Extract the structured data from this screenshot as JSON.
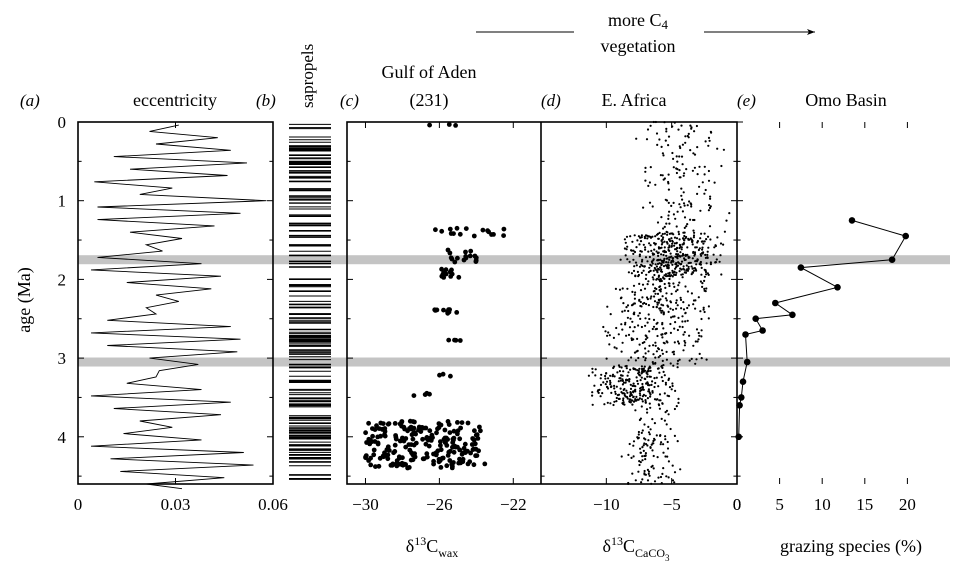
{
  "header": {
    "arrow_text_line1": "more C",
    "arrow_text_line1_sub": "4",
    "arrow_text_line2": "vegetation"
  },
  "y_axis": {
    "label": "age (Ma)",
    "ticks": [
      "0",
      "1",
      "2",
      "3",
      "4"
    ]
  },
  "shading_bands_ma": [
    1.75,
    3.05
  ],
  "chart_data": [
    {
      "type": "line",
      "panel_label": "(a)",
      "title": "eccentricity",
      "xlim": [
        0,
        0.06
      ],
      "ylim": [
        0,
        4.6
      ],
      "x_ticks": [
        "0",
        "0.03",
        "0.06"
      ],
      "xlabel": "",
      "series": [
        {
          "x": [
            0.031,
            0.022,
            0.043,
            0.024,
            0.047,
            0.011,
            0.052,
            0.016,
            0.046,
            0.005,
            0.029,
            0.019,
            0.058,
            0.006,
            0.05,
            0.006,
            0.042,
            0.016,
            0.032,
            0.021,
            0.026,
            0.006,
            0.038,
            0.004,
            0.044,
            0.015,
            0.041,
            0.024,
            0.031,
            0.021,
            0.024,
            0.009,
            0.047,
            0.004,
            0.05,
            0.009,
            0.049,
            0.022,
            0.037,
            0.025,
            0.024,
            0.015,
            0.038,
            0.004,
            0.047,
            0.011,
            0.044,
            0.019,
            0.029,
            0.014,
            0.038,
            0.004,
            0.051,
            0.01,
            0.054,
            0.013,
            0.045,
            0.021,
            0.032
          ],
          "y": [
            0.04,
            0.12,
            0.2,
            0.28,
            0.36,
            0.44,
            0.52,
            0.6,
            0.68,
            0.76,
            0.84,
            0.92,
            1.0,
            1.08,
            1.16,
            1.24,
            1.32,
            1.4,
            1.48,
            1.56,
            1.64,
            1.72,
            1.8,
            1.88,
            1.96,
            2.04,
            2.12,
            2.2,
            2.28,
            2.36,
            2.44,
            2.52,
            2.6,
            2.68,
            2.76,
            2.84,
            2.92,
            3.0,
            3.08,
            3.16,
            3.24,
            3.32,
            3.4,
            3.48,
            3.56,
            3.64,
            3.72,
            3.8,
            3.88,
            3.96,
            4.04,
            4.12,
            4.2,
            4.28,
            4.36,
            4.44,
            4.52,
            4.6,
            4.66
          ]
        }
      ]
    },
    {
      "type": "table",
      "panel_label": "(b)",
      "title": "sapropels",
      "ylim": [
        0,
        4.6
      ]
    },
    {
      "type": "scatter",
      "panel_label": "(c)",
      "title_line1": "Gulf of Aden",
      "title_line2": "(231)",
      "xlabel": "δ13Cwax",
      "xlim": [
        -31,
        -20.5
      ],
      "ylim": [
        0,
        4.6
      ],
      "x_ticks": [
        "−30",
        "−26",
        "−22"
      ],
      "clusters": [
        {
          "x_min": -26.8,
          "x_max": -25.0,
          "y_min": 0.03,
          "y_max": 0.05,
          "n": 3
        },
        {
          "x_min": -26.3,
          "x_max": -22.0,
          "y_min": 1.35,
          "y_max": 1.45,
          "n": 16
        },
        {
          "x_min": -25.6,
          "x_max": -24.0,
          "y_min": 1.62,
          "y_max": 1.78,
          "n": 16
        },
        {
          "x_min": -26.0,
          "x_max": -24.8,
          "y_min": 1.86,
          "y_max": 1.98,
          "n": 12
        },
        {
          "x_min": -26.4,
          "x_max": -25.0,
          "y_min": 2.38,
          "y_max": 2.44,
          "n": 10
        },
        {
          "x_min": -25.5,
          "x_max": -24.8,
          "y_min": 2.77,
          "y_max": 2.81,
          "n": 4
        },
        {
          "x_min": -26.0,
          "x_max": -25.4,
          "y_min": 3.2,
          "y_max": 3.24,
          "n": 3
        },
        {
          "x_min": -27.6,
          "x_max": -26.5,
          "y_min": 3.44,
          "y_max": 3.48,
          "n": 4
        },
        {
          "x_min": -30.0,
          "x_max": -23.5,
          "y_min": 3.8,
          "y_max": 4.4,
          "n": 220
        }
      ]
    },
    {
      "type": "scatter",
      "panel_label": "(d)",
      "title": "E. Africa",
      "xlabel": "δ13CCaCO3",
      "xlim": [
        -15,
        0
      ],
      "ylim": [
        0,
        4.6
      ],
      "x_ticks": [
        "−10",
        "−5",
        "0"
      ],
      "clusters": [
        {
          "x_min": -8.0,
          "x_max": -0.5,
          "y_min": 0.0,
          "y_max": 1.4,
          "n": 150
        },
        {
          "x_min": -9.0,
          "x_max": -1.0,
          "y_min": 1.4,
          "y_max": 2.0,
          "n": 420
        },
        {
          "x_min": -10.5,
          "x_max": -1.5,
          "y_min": 2.0,
          "y_max": 3.1,
          "n": 300
        },
        {
          "x_min": -11.5,
          "x_max": -4.0,
          "y_min": 3.1,
          "y_max": 3.6,
          "n": 260
        },
        {
          "x_min": -9.0,
          "x_max": -4.0,
          "y_min": 3.6,
          "y_max": 4.6,
          "n": 120
        }
      ]
    },
    {
      "type": "line",
      "panel_label": "(e)",
      "title": "Omo Basin",
      "xlabel": "grazing species (%)",
      "xlim": [
        0,
        25
      ],
      "ylim": [
        0,
        4.6
      ],
      "x_ticks": [
        "0",
        "5",
        "10",
        "15",
        "20"
      ],
      "series": [
        {
          "x": [
            13.5,
            19.8,
            18.2,
            7.5,
            11.8,
            4.5,
            6.5,
            2.2,
            3.0,
            1.0,
            1.2,
            0.7,
            0.5,
            0.3,
            0.2
          ],
          "y": [
            1.25,
            1.45,
            1.75,
            1.85,
            2.1,
            2.3,
            2.45,
            2.5,
            2.65,
            2.7,
            3.05,
            3.3,
            3.5,
            3.6,
            4.0
          ]
        }
      ]
    }
  ]
}
